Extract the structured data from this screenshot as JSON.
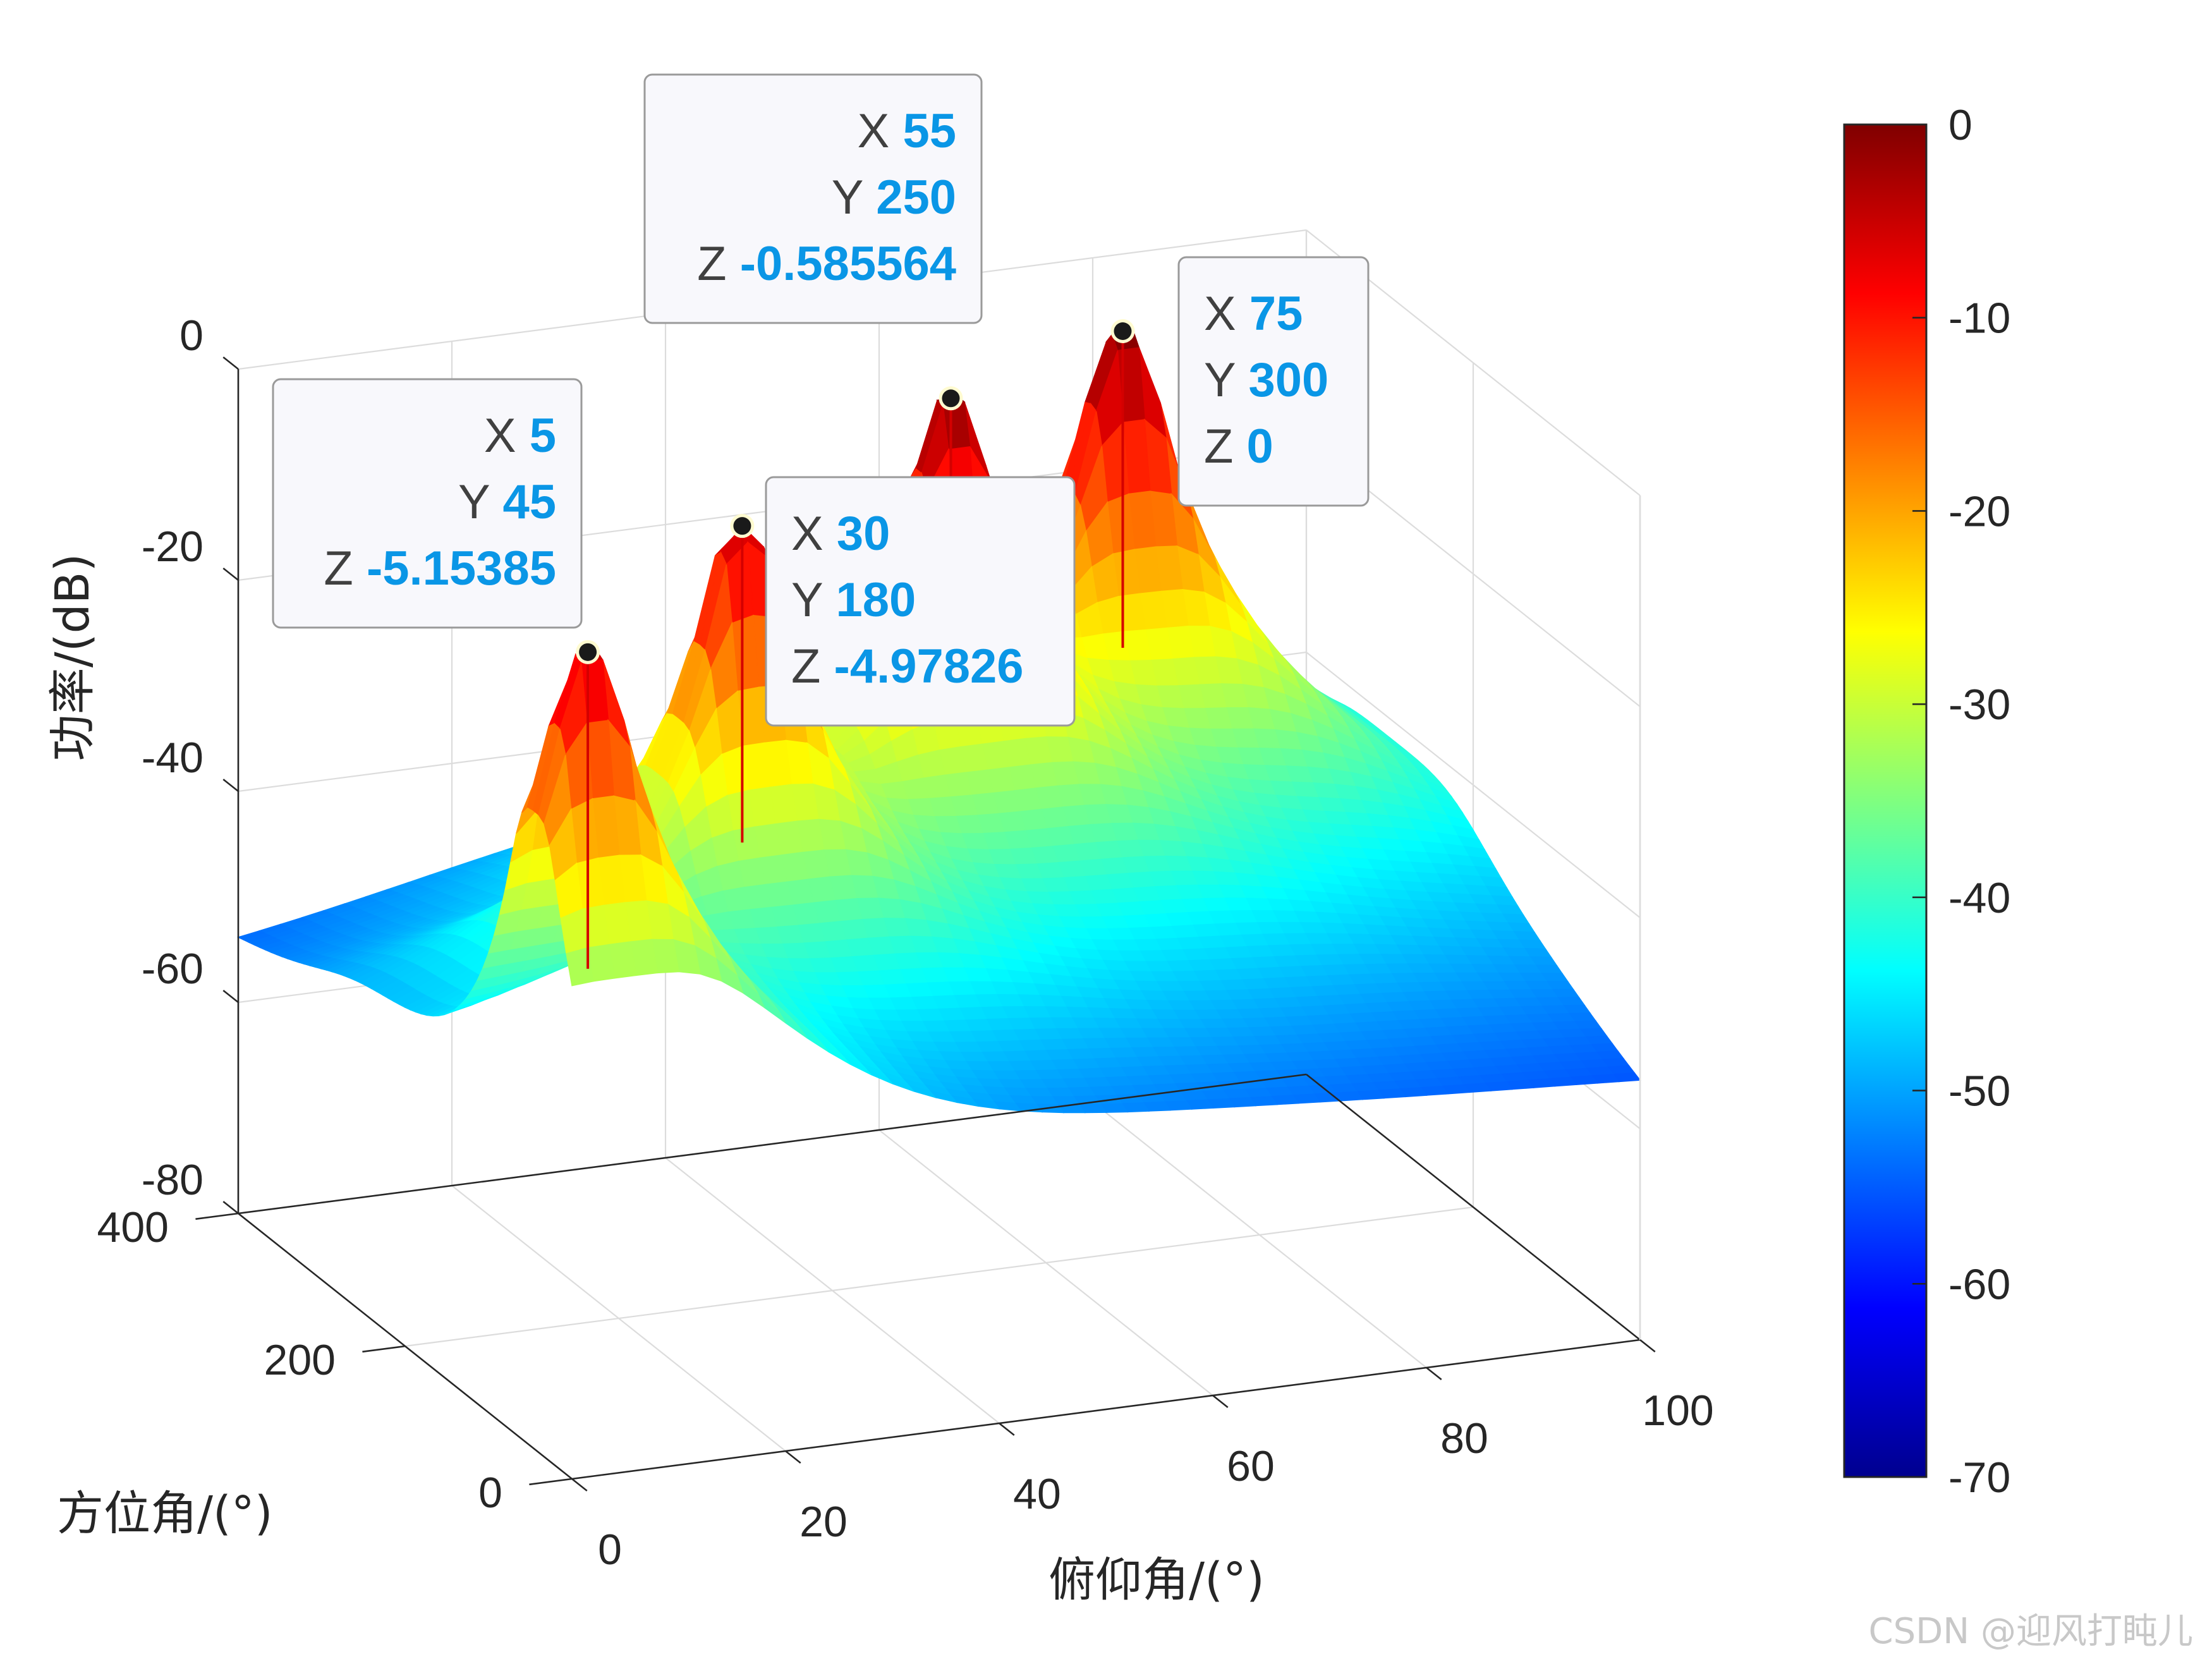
{
  "chart_data": {
    "type": "surface",
    "title": "",
    "xlabel": "俯仰角/(°)",
    "ylabel": "方位角/(°)",
    "zlabel": "功率/(dB)",
    "xlim": [
      0,
      100
    ],
    "ylim": [
      0,
      400
    ],
    "zlim": [
      -80,
      0
    ],
    "x_ticks": [
      "0",
      "20",
      "40",
      "60",
      "80",
      "100"
    ],
    "y_ticks": [
      "0",
      "200",
      "400"
    ],
    "z_ticks": [
      "0",
      "-20",
      "-40",
      "-60",
      "-80"
    ],
    "grid": true,
    "colormap": "jet",
    "colorbar": {
      "limits": [
        -70,
        0
      ],
      "ticks": [
        "0",
        "-10",
        "-20",
        "-30",
        "-40",
        "-50",
        "-60",
        "-70"
      ]
    },
    "peaks": [
      {
        "x": 5,
        "y": 45,
        "z": -5.15385
      },
      {
        "x": 30,
        "y": 180,
        "z": -4.97826
      },
      {
        "x": 55,
        "y": 250,
        "z": -0.585564
      },
      {
        "x": 75,
        "y": 300,
        "z": 0
      }
    ],
    "datatips": [
      {
        "x_label": "X",
        "x": "5",
        "y_label": "Y",
        "y": "45",
        "z_label": "Z",
        "z": "-5.15385"
      },
      {
        "x_label": "X",
        "x": "30",
        "y_label": "Y",
        "y": "180",
        "z_label": "Z",
        "z": "-4.97826"
      },
      {
        "x_label": "X",
        "x": "55",
        "y_label": "Y",
        "y": "250",
        "z_label": "Z",
        "z": "-0.585564"
      },
      {
        "x_label": "X",
        "x": "75",
        "y_label": "Y",
        "y": "300",
        "z_label": "Z",
        "z": "0"
      }
    ]
  },
  "watermark": "CSDN @迎风打盹儿"
}
